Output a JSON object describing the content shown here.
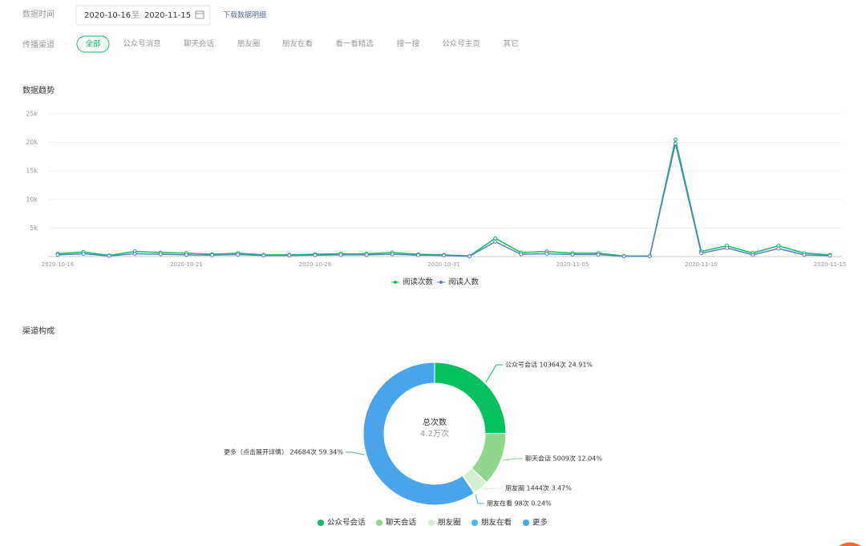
{
  "filters": {
    "time_label": "数据时间",
    "start_date": "2020-10-16",
    "separator": "至",
    "end_date": "2020-11-15",
    "download_link": "下载数据明细",
    "channel_label": "传播渠道",
    "channels": [
      "全部",
      "公众号消息",
      "聊天会话",
      "朋友圈",
      "朋友在看",
      "看一看精选",
      "搜一搜",
      "公众号主页",
      "其它"
    ]
  },
  "chart_data": [
    {
      "type": "line",
      "title": "数据趋势",
      "categories": [
        "2020-10-16",
        null,
        null,
        null,
        null,
        "2020-10-21",
        null,
        null,
        null,
        null,
        "2020-10-26",
        null,
        null,
        null,
        null,
        "2020-10-31",
        null,
        null,
        null,
        null,
        "2020-11-05",
        null,
        null,
        null,
        null,
        "2020-11-10",
        null,
        null,
        null,
        null,
        "2020-11-15"
      ],
      "series": [
        {
          "name": "阅读次数",
          "color": "#07c160",
          "values": [
            500,
            800,
            200,
            900,
            700,
            600,
            400,
            600,
            300,
            300,
            400,
            500,
            500,
            700,
            400,
            300,
            100,
            3200,
            700,
            900,
            600,
            600,
            100,
            100,
            20500,
            900,
            1900,
            600,
            1900,
            600,
            300
          ]
        },
        {
          "name": "阅读人数",
          "color": "#5b7fbf",
          "values": [
            300,
            500,
            100,
            500,
            400,
            300,
            250,
            350,
            200,
            200,
            250,
            300,
            300,
            400,
            250,
            200,
            50,
            2600,
            400,
            500,
            350,
            350,
            50,
            50,
            19800,
            600,
            1500,
            300,
            1400,
            300,
            150
          ]
        }
      ],
      "ylim": [
        0,
        25000
      ],
      "yticks": [
        {
          "value": 5000,
          "label": "5k"
        },
        {
          "value": 10000,
          "label": "10k"
        },
        {
          "value": 15000,
          "label": "15k"
        },
        {
          "value": 20000,
          "label": "20k"
        },
        {
          "value": 25000,
          "label": "25k"
        }
      ],
      "grid": true
    },
    {
      "type": "pie",
      "title": "渠道构成",
      "center_label": "总次数",
      "center_value": "4.2万次",
      "categories": [
        "公众号会话",
        "聊天会话",
        "朋友圈",
        "朋友在看",
        "更多"
      ],
      "values": [
        10364,
        5009,
        1444,
        98,
        24684
      ],
      "value_labels": [
        "公众号会话 10364次 24.91%",
        "聊天会话 5009次 12.04%",
        "朋友圈 1444次 3.47%",
        "朋友在看 98次 0.24%",
        "更多（点击展开详情） 24684次 59.34%"
      ],
      "colors": [
        "#07c160",
        "#91d68d",
        "#d4efd1",
        "#36c1e4",
        "#4aa4ea"
      ]
    }
  ]
}
